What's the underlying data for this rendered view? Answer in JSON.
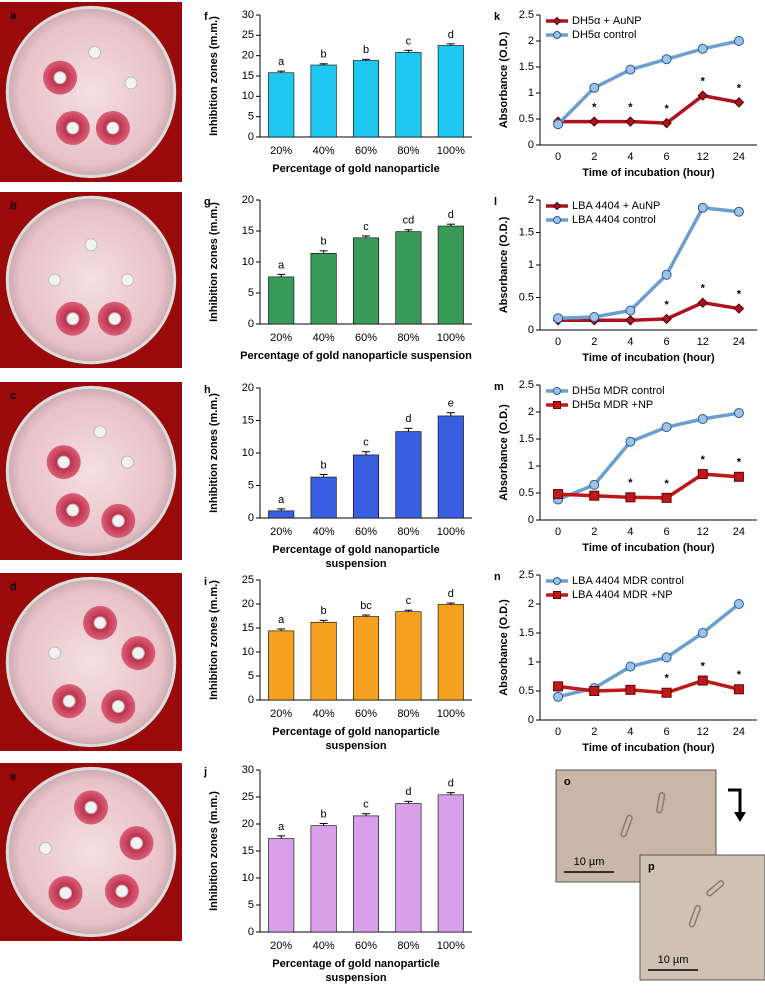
{
  "photos": [
    {
      "label": "a"
    },
    {
      "label": "b"
    },
    {
      "label": "c"
    },
    {
      "label": "d"
    },
    {
      "label": "e"
    }
  ],
  "micrographs": [
    {
      "label": "o",
      "scale": "10 µm"
    },
    {
      "label": "p",
      "scale": "10 µm"
    }
  ],
  "chart_data": [
    {
      "type": "bar",
      "panel": "f",
      "categories": [
        "20%",
        "40%",
        "60%",
        "80%",
        "100%"
      ],
      "values": [
        15.8,
        17.7,
        18.8,
        20.8,
        22.5
      ],
      "errors": [
        0.4,
        0.3,
        0.3,
        0.5,
        0.4
      ],
      "letters": [
        "a",
        "b",
        "b",
        "c",
        "d"
      ],
      "color": "#1ec8f0",
      "ylim": [
        0,
        30
      ],
      "yticks": [
        0,
        5,
        10,
        15,
        20,
        25,
        30
      ],
      "ylabel": "Inhibition zones (m.m.)",
      "xlabel": [
        "Percentage of gold nanoparticle"
      ]
    },
    {
      "type": "bar",
      "panel": "g",
      "categories": [
        "20%",
        "40%",
        "60%",
        "80%",
        "100%"
      ],
      "values": [
        7.6,
        11.4,
        13.9,
        14.9,
        15.8
      ],
      "errors": [
        0.4,
        0.4,
        0.3,
        0.3,
        0.3
      ],
      "letters": [
        "a",
        "b",
        "c",
        "cd",
        "d"
      ],
      "color": "#3a9a5a",
      "ylim": [
        0,
        20
      ],
      "yticks": [
        0,
        5,
        10,
        15,
        20
      ],
      "ylabel": "Inhibition zones (m.m.)",
      "xlabel": [
        "Percentage of gold nanoparticle suspension"
      ]
    },
    {
      "type": "bar",
      "panel": "h",
      "categories": [
        "20%",
        "40%",
        "60%",
        "80%",
        "100%"
      ],
      "values": [
        1.1,
        6.3,
        9.7,
        13.3,
        15.7
      ],
      "errors": [
        0.3,
        0.4,
        0.5,
        0.5,
        0.5
      ],
      "letters": [
        "a",
        "b",
        "c",
        "d",
        "e"
      ],
      "color": "#3a5fe0",
      "ylim": [
        0,
        20
      ],
      "yticks": [
        0,
        5,
        10,
        15,
        20
      ],
      "ylabel": "Inhibition zones (m.m.)",
      "xlabel": [
        "Percentage of gold nanoparticle",
        "suspension"
      ]
    },
    {
      "type": "bar",
      "panel": "i",
      "categories": [
        "20%",
        "40%",
        "60%",
        "80%",
        "100%"
      ],
      "values": [
        14.4,
        16.2,
        17.4,
        18.4,
        19.9
      ],
      "errors": [
        0.4,
        0.4,
        0.3,
        0.3,
        0.3
      ],
      "letters": [
        "a",
        "b",
        "bc",
        "c",
        "d"
      ],
      "color": "#f5a020",
      "ylim": [
        0,
        25
      ],
      "yticks": [
        0,
        5,
        10,
        15,
        20,
        25
      ],
      "ylabel": "Inhibition zones (m.m.)",
      "xlabel": [
        "Percentage of gold nanoparticle",
        "suspension"
      ]
    },
    {
      "type": "bar",
      "panel": "j",
      "categories": [
        "20%",
        "40%",
        "60%",
        "80%",
        "100%"
      ],
      "values": [
        17.3,
        19.7,
        21.5,
        23.8,
        25.4
      ],
      "errors": [
        0.5,
        0.4,
        0.4,
        0.4,
        0.4
      ],
      "letters": [
        "a",
        "b",
        "c",
        "d",
        "d"
      ],
      "color": "#d8a0e8",
      "ylim": [
        0,
        30
      ],
      "yticks": [
        0,
        5,
        10,
        15,
        20,
        25,
        30
      ],
      "ylabel": "Inhibition zones (m.m.)",
      "xlabel": [
        "Percentage of gold nanoparticle",
        "suspension"
      ]
    },
    {
      "type": "line",
      "panel": "k",
      "categories": [
        "0",
        "2",
        "4",
        "6",
        "12",
        "24"
      ],
      "asterisk": "*",
      "ylim": [
        0,
        2.5
      ],
      "yticks": [
        0,
        0.5,
        1,
        1.5,
        2,
        2.5
      ],
      "ylabel": "Absorbance (O.D.)",
      "xlabel": "Time of incubation (hour)",
      "series": [
        {
          "name": "DH5α + AuNP",
          "color": "#b01020",
          "marker": "diamond",
          "values": [
            0.45,
            0.45,
            0.45,
            0.42,
            0.95,
            0.82
          ],
          "asterisk_at": [
            1,
            2,
            3,
            4,
            5
          ]
        },
        {
          "name": "DH5α control",
          "color": "#6a9fd0",
          "marker": "circle",
          "values": [
            0.4,
            1.1,
            1.45,
            1.65,
            1.85,
            2.0
          ]
        }
      ]
    },
    {
      "type": "line",
      "panel": "l",
      "categories": [
        "0",
        "2",
        "4",
        "6",
        "12",
        "24"
      ],
      "asterisk": "*",
      "ylim": [
        0,
        2
      ],
      "yticks": [
        0,
        0.5,
        1,
        1.5,
        2
      ],
      "ylabel": "Absorbance (O.D.)",
      "xlabel": "Time of incubation (hour)",
      "series": [
        {
          "name": "LBA 4404 + AuNP",
          "color": "#b01020",
          "marker": "diamond",
          "values": [
            0.15,
            0.15,
            0.15,
            0.17,
            0.42,
            0.33
          ],
          "asterisk_at": [
            3,
            4,
            5
          ]
        },
        {
          "name": "LBA 4404 control",
          "color": "#6a9fd0",
          "marker": "circle",
          "values": [
            0.18,
            0.2,
            0.3,
            0.85,
            1.88,
            1.82
          ]
        }
      ]
    },
    {
      "type": "line",
      "panel": "m",
      "categories": [
        "0",
        "2",
        "4",
        "6",
        "12",
        "24"
      ],
      "asterisk": "*",
      "ylim": [
        0,
        2.5
      ],
      "yticks": [
        0,
        0.5,
        1,
        1.5,
        2,
        2.5
      ],
      "ylabel": "Absorbance (O.D.)",
      "xlabel": "Time of incubation (hour)",
      "series": [
        {
          "name": "DH5α MDR control",
          "color": "#6a9fd0",
          "marker": "circle",
          "values": [
            0.38,
            0.65,
            1.45,
            1.72,
            1.87,
            1.98
          ]
        },
        {
          "name": "DH5α MDR +NP",
          "color": "#c01818",
          "marker": "square",
          "values": [
            0.48,
            0.45,
            0.42,
            0.41,
            0.85,
            0.8
          ],
          "asterisk_at": [
            2,
            3,
            4,
            5
          ]
        }
      ]
    },
    {
      "type": "line",
      "panel": "n",
      "categories": [
        "0",
        "2",
        "4",
        "6",
        "12",
        "24"
      ],
      "asterisk": "*",
      "ylim": [
        0,
        2.5
      ],
      "yticks": [
        0,
        0.5,
        1,
        1.5,
        2,
        2.5
      ],
      "ylabel": "Absorbance (O.D.)",
      "xlabel": "Time of incubation (hour)",
      "series": [
        {
          "name": "LBA 4404 MDR control",
          "color": "#6a9fd0",
          "marker": "circle",
          "values": [
            0.4,
            0.55,
            0.92,
            1.08,
            1.5,
            2.0
          ]
        },
        {
          "name": "LBA 4404 MDR +NP",
          "color": "#c01818",
          "marker": "square",
          "values": [
            0.58,
            0.5,
            0.52,
            0.47,
            0.68,
            0.53
          ],
          "asterisk_at": [
            3,
            4,
            5
          ]
        }
      ]
    }
  ]
}
